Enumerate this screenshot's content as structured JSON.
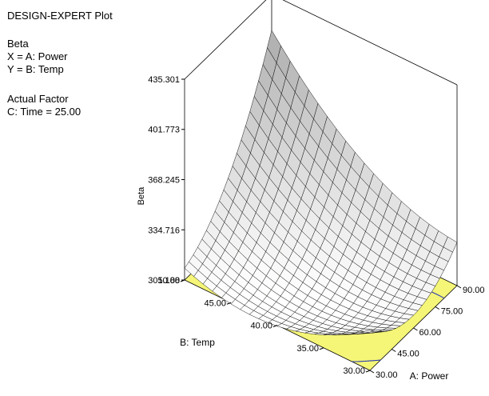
{
  "header": {
    "title": "DESIGN-EXPERT Plot",
    "response": "Beta",
    "x_def": "X = A: Power",
    "y_def": "Y = B: Temp",
    "actual_factor_heading": "Actual Factor",
    "actual_factor_value": "C: Time = 25.00"
  },
  "chart_data": {
    "type": "surface",
    "title": "",
    "xlabel": "A: Power",
    "ylabel": "B: Temp",
    "zlabel": "Beta",
    "x_ticks": [
      "30.00",
      "45.00",
      "60.00",
      "75.00",
      "90.00"
    ],
    "y_ticks": [
      "30.00",
      "35.00",
      "40.00",
      "45.00",
      "50.00"
    ],
    "z_ticks": [
      "301.188",
      "334.716",
      "368.245",
      "401.773",
      "435.301"
    ],
    "xlim": [
      30,
      90
    ],
    "ylim": [
      30,
      50
    ],
    "zlim": [
      301.188,
      435.301
    ],
    "corner_values": [
      {
        "power": 30,
        "temp": 30,
        "beta": 352
      },
      {
        "power": 90,
        "temp": 30,
        "beta": 354
      },
      {
        "power": 30,
        "temp": 50,
        "beta": 333
      },
      {
        "power": 90,
        "temp": 50,
        "beta": 435.301
      }
    ],
    "minimum": {
      "power": 52,
      "temp": 36,
      "beta": 301
    }
  },
  "colors": {
    "floor": "#f5f577",
    "contour": "#2b3bb0",
    "surface_low": "#ffffff",
    "surface_high": "#9a9a9a",
    "mesh": "#000000"
  }
}
